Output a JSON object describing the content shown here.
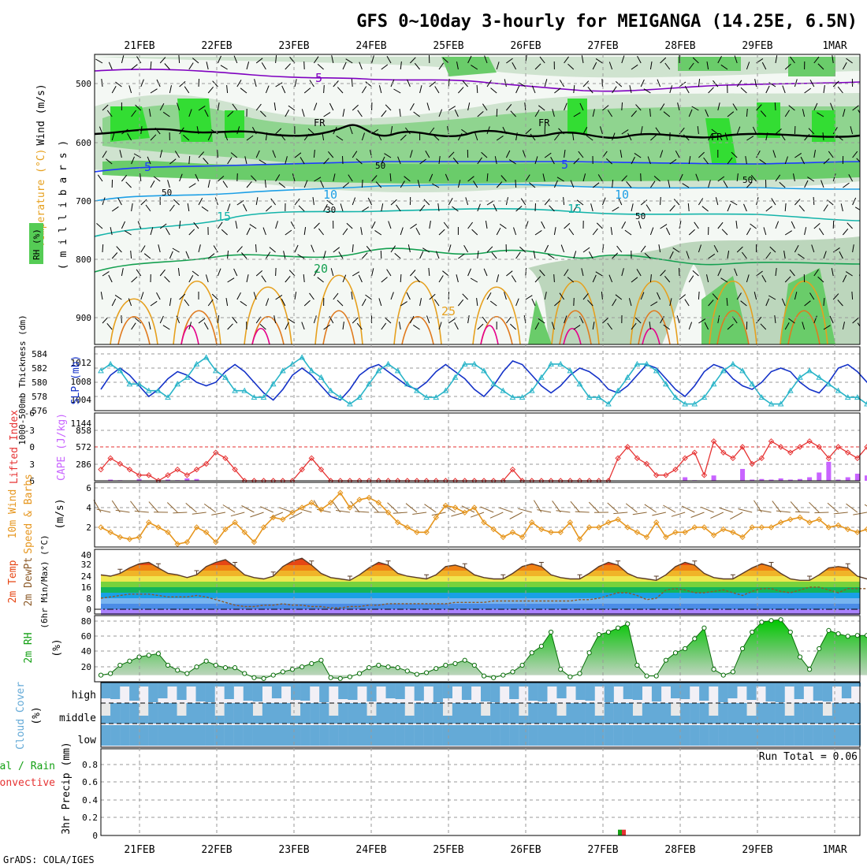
{
  "title": "GFS 0~10day 3-hourly for MEIGANGA (14.25E, 6.5N)",
  "credit": "GrADS: COLA/IGES",
  "dates": [
    "21FEB",
    "22FEB",
    "23FEB",
    "24FEB",
    "25FEB",
    "26FEB",
    "27FEB",
    "28FEB",
    "29FEB",
    "1MAR"
  ],
  "colors": {
    "purple": "#7f00c0",
    "black": "#000000",
    "blue": "#1e3cff",
    "cyan": "#1ea0e6",
    "teal": "#14b4aa",
    "green": "#14a050",
    "orange": "#e6a01e",
    "magenta": "#e6008c",
    "slp": "#1432c8",
    "thick": "#28b4c8",
    "li": "#e63232",
    "cape": "#c864ff",
    "windline": "#e6961e",
    "barb": "#8c6432",
    "rh": "#14a014",
    "cloud": "#64aad7",
    "precipGreen": "#14a014",
    "precipRed": "#e63232"
  },
  "panels": {
    "upper": {
      "ylabel_wind": "Wind (m/s)",
      "ylabel_temp": "Temperature (°C)",
      "ylabel_rh": "RH (%)",
      "ylabel_mb": "( m i l l i b a r s )",
      "ylim": [
        1000,
        450
      ],
      "yticks": [
        "500",
        "600",
        "700",
        "800",
        "900"
      ],
      "contour_labels": [
        {
          "text": "5",
          "color": "purple"
        },
        {
          "text": "5",
          "color": "blue"
        },
        {
          "text": "5",
          "color": "blue"
        },
        {
          "text": "10",
          "color": "cyan"
        },
        {
          "text": "10",
          "color": "cyan"
        },
        {
          "text": "15",
          "color": "teal"
        },
        {
          "text": "15",
          "color": "teal"
        },
        {
          "text": "20",
          "color": "green"
        },
        {
          "text": "25",
          "color": "orange"
        },
        {
          "text": "FR",
          "color": "black"
        },
        {
          "text": "FR",
          "color": "black"
        },
        {
          "text": "FR",
          "color": "black"
        },
        {
          "text": "50",
          "color": "gray"
        },
        {
          "text": "50",
          "color": "gray"
        },
        {
          "text": "30",
          "color": "gray"
        },
        {
          "text": "50",
          "color": "gray"
        },
        {
          "text": "50",
          "color": "gray"
        }
      ]
    },
    "slp": {
      "ylabel_slp": "SLP (mb)",
      "ylabel_thick": "1000-500mb Thickness (dm)",
      "left_ticks": [
        "584",
        "582",
        "580",
        "578",
        "576"
      ],
      "right_ticks": [
        "1012",
        "1008",
        "1004"
      ]
    },
    "cape": {
      "ylabel_li": "Lifted Index",
      "ylabel_cape": "CAPE (J/kg)",
      "left_ticks": [
        "-6",
        "-3",
        "0",
        "3",
        "6"
      ],
      "right_ticks": [
        "1144",
        "858",
        "572",
        "286"
      ]
    },
    "wind10": {
      "ylabel1": "10m Wind",
      "ylabel2": "Speed & Barbs",
      "ylabel3": "(m/s)",
      "yticks": [
        "6",
        "4",
        "2"
      ]
    },
    "temp2m": {
      "ylabel1": "2m Temp",
      "ylabel2": "2m DewPt",
      "ylabel3": "(6hr Min/Max) (°C)",
      "yticks": [
        "40",
        "32",
        "24",
        "16",
        "8",
        "0"
      ]
    },
    "rh2m": {
      "ylabel1": "2m RH",
      "ylabel2": "(%)",
      "yticks": [
        "80",
        "60",
        "40",
        "20"
      ]
    },
    "cloud": {
      "ylabel1": "Cloud Cover",
      "ylabel2": "(%)",
      "layers": [
        "high",
        "middle",
        "low"
      ]
    },
    "precip": {
      "ylabel1": "Total / Rain",
      "ylabel2": "Convective",
      "ylabel3": "3hr Precip (mm)",
      "yticks": [
        "0.8",
        "0.6",
        "0.4",
        "0.2",
        "0"
      ],
      "run_total": "Run Total = 0.06"
    }
  },
  "chart_data": [
    {
      "type": "line",
      "title": "SLP (mb)",
      "ylim": [
        1002,
        1016
      ],
      "values": [
        1006,
        1010,
        1012,
        1010,
        1007,
        1004,
        1006,
        1009,
        1011,
        1010,
        1008,
        1007,
        1008,
        1011,
        1013,
        1011,
        1008,
        1005,
        1003,
        1006,
        1010,
        1012,
        1010,
        1007,
        1004,
        1003,
        1006,
        1010,
        1012,
        1013,
        1011,
        1009,
        1007,
        1006,
        1008,
        1011,
        1013,
        1011,
        1009,
        1006,
        1004,
        1007,
        1011,
        1014,
        1013,
        1010,
        1007,
        1005,
        1007,
        1010,
        1012,
        1011,
        1009,
        1006,
        1005,
        1007,
        1010,
        1013,
        1012,
        1009,
        1006,
        1004,
        1007,
        1011,
        1013,
        1012,
        1009,
        1007,
        1006,
        1008,
        1011,
        1012,
        1011,
        1008,
        1006,
        1005,
        1008,
        1012,
        1013,
        1011,
        1008,
        1006
      ]
    },
    {
      "type": "line",
      "title": "1000-500mb Thickness (dm)",
      "ylim": [
        576,
        585
      ],
      "values": [
        582,
        583,
        582,
        580,
        580,
        579,
        579,
        578,
        580,
        581,
        583,
        584,
        582,
        581,
        579,
        579,
        578,
        578,
        580,
        582,
        583,
        584,
        582,
        581,
        579,
        578,
        577,
        578,
        580,
        582,
        583,
        582,
        580,
        579,
        578,
        578,
        579,
        581,
        583,
        583,
        582,
        580,
        579,
        578,
        578,
        579,
        581,
        583,
        583,
        582,
        580,
        578,
        578,
        577,
        579,
        581,
        583,
        583,
        582,
        580,
        578,
        577,
        577,
        578,
        580,
        582,
        583,
        582,
        580,
        578,
        577,
        577,
        579,
        581,
        582,
        581,
        580,
        579,
        578,
        578,
        577,
        578
      ]
    },
    {
      "type": "line",
      "title": "Lifted Index",
      "ylim": [
        6,
        -6
      ],
      "values": [
        4,
        2,
        3,
        4,
        5,
        5,
        6,
        5,
        4,
        5,
        4,
        3,
        1,
        2,
        4,
        6,
        6,
        6,
        6,
        6,
        6,
        4,
        2,
        4,
        6,
        6,
        6,
        6,
        6,
        6,
        6,
        6,
        6,
        6,
        6,
        6,
        6,
        6,
        6,
        6,
        6,
        6,
        6,
        4,
        6,
        6,
        6,
        6,
        6,
        6,
        6,
        6,
        6,
        6,
        2,
        0,
        2,
        3,
        5,
        5,
        4,
        2,
        1,
        5,
        -1,
        1,
        2,
        0,
        3,
        2,
        -1,
        0,
        1,
        0,
        -1,
        0,
        2,
        0,
        1,
        2,
        0,
        0
      ]
    },
    {
      "type": "bar",
      "title": "CAPE (J/kg)",
      "ylim": [
        0,
        1144
      ],
      "values": [
        0,
        20,
        10,
        5,
        30,
        0,
        15,
        20,
        10,
        40,
        30,
        0,
        0,
        0,
        0,
        0,
        0,
        0,
        0,
        0,
        0,
        0,
        0,
        0,
        0,
        0,
        0,
        0,
        0,
        0,
        0,
        0,
        0,
        0,
        0,
        0,
        0,
        0,
        0,
        0,
        0,
        0,
        0,
        0,
        0,
        0,
        0,
        0,
        0,
        0,
        0,
        0,
        0,
        0,
        0,
        0,
        0,
        0,
        0,
        0,
        0,
        60,
        10,
        0,
        90,
        0,
        0,
        200,
        20,
        30,
        20,
        40,
        20,
        30,
        60,
        140,
        320,
        20,
        60,
        120,
        90,
        40
      ]
    },
    {
      "type": "line",
      "title": "10m Wind Speed (m/s)",
      "ylim": [
        0,
        6.5
      ],
      "values": [
        2,
        1.5,
        1,
        0.8,
        1,
        2.5,
        2,
        1.5,
        0.3,
        0.5,
        2,
        1.5,
        0.5,
        1.8,
        2.5,
        1.5,
        0.5,
        2,
        3,
        2.8,
        3.5,
        4,
        4.5,
        3.8,
        4.5,
        5.5,
        4,
        4.8,
        5,
        4.5,
        3.5,
        2.5,
        2,
        1.5,
        1.5,
        3,
        4.2,
        4,
        3.5,
        4,
        2.5,
        1.8,
        1,
        1.5,
        1,
        2.5,
        1.8,
        1.5,
        1.5,
        2.5,
        0.8,
        2,
        2,
        2.5,
        2.8,
        2,
        1.5,
        1,
        2.5,
        1,
        1.5,
        1.5,
        2,
        2,
        1.2,
        1.8,
        1.5,
        1,
        2,
        2,
        2,
        2.5,
        2.8,
        3,
        2.5,
        2.8,
        2,
        2.2,
        1.8,
        1.5,
        1.8,
        2
      ]
    },
    {
      "type": "area",
      "title": "2m Temp (°C)",
      "ylim": [
        0,
        40
      ],
      "values": [
        25,
        24,
        26,
        30,
        33,
        34,
        30,
        26,
        25,
        23,
        25,
        31,
        34,
        36,
        31,
        25,
        23,
        22,
        24,
        31,
        35,
        37,
        32,
        26,
        23,
        22,
        21,
        25,
        30,
        34,
        32,
        26,
        24,
        23,
        22,
        25,
        31,
        32,
        30,
        25,
        23,
        22,
        22,
        26,
        31,
        33,
        31,
        25,
        23,
        22,
        22,
        26,
        31,
        34,
        32,
        26,
        23,
        22,
        21,
        25,
        31,
        34,
        32,
        26,
        23,
        22,
        22,
        26,
        30,
        33,
        31,
        26,
        22,
        21,
        21,
        25,
        30,
        31,
        30,
        24,
        22,
        22
      ]
    },
    {
      "type": "line",
      "title": "2m DewPt (°C)",
      "ylim": [
        0,
        40
      ],
      "values": [
        8,
        9,
        10,
        11,
        11,
        11,
        10,
        9,
        9,
        9,
        10,
        9,
        7,
        5,
        3,
        2,
        2,
        3,
        3,
        4,
        3,
        3,
        2,
        2,
        1,
        1,
        2,
        2,
        3,
        3,
        4,
        4,
        4,
        4,
        4,
        4,
        4,
        5,
        5,
        5,
        5,
        6,
        6,
        6,
        6,
        6,
        6,
        6,
        6,
        6,
        7,
        7,
        8,
        10,
        12,
        12,
        10,
        7,
        8,
        14,
        15,
        14,
        12,
        12,
        13,
        14,
        12,
        10,
        13,
        15,
        15,
        13,
        12,
        14,
        16,
        16,
        14,
        12,
        15,
        15,
        15,
        14
      ]
    },
    {
      "type": "area",
      "title": "2m RH (%)",
      "ylim": [
        10,
        90
      ],
      "values": [
        18,
        20,
        30,
        35,
        40,
        42,
        44,
        30,
        24,
        20,
        28,
        35,
        30,
        27,
        27,
        20,
        15,
        14,
        18,
        22,
        25,
        28,
        32,
        36,
        15,
        14,
        16,
        20,
        27,
        30,
        28,
        27,
        23,
        19,
        21,
        26,
        30,
        32,
        36,
        30,
        17,
        15,
        18,
        22,
        30,
        45,
        53,
        70,
        25,
        16,
        20,
        45,
        67,
        70,
        75,
        80,
        30,
        17,
        17,
        36,
        45,
        50,
        62,
        75,
        25,
        18,
        22,
        50,
        70,
        82,
        84,
        85,
        70,
        40,
        25,
        50,
        72,
        68,
        65,
        66,
        66,
        68
      ]
    },
    {
      "type": "bar",
      "title": "3hr Precip (mm)",
      "ylim": [
        0,
        0.9
      ],
      "categories": [
        "27FEB"
      ],
      "values": [
        0.06
      ]
    }
  ]
}
